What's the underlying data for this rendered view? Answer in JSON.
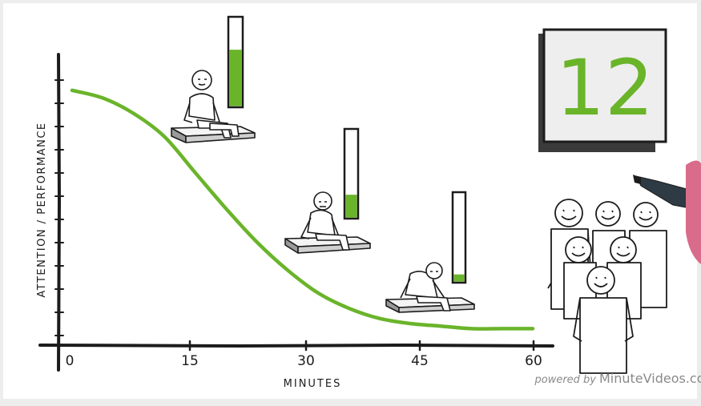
{
  "chart_data": {
    "type": "line",
    "xlabel": "MINUTES",
    "ylabel": "ATTENTION / PERFORMANCE",
    "x_ticks": [
      "0",
      "15",
      "30",
      "45",
      "60"
    ],
    "xlim": [
      0,
      60
    ],
    "ylim": [
      0,
      100
    ],
    "grid": false,
    "series": [
      {
        "x": [
          0,
          4,
          8,
          12,
          16,
          20,
          24,
          28,
          32,
          36,
          40,
          44,
          48,
          52,
          56,
          60
        ],
        "y": [
          96,
          93,
          87,
          78,
          64,
          50,
          37,
          26,
          17,
          11,
          7,
          5,
          4,
          3,
          3,
          3
        ],
        "color": "#6ab42a"
      }
    ],
    "gauges": [
      {
        "label": "attention-gauge-high",
        "level": 0.64
      },
      {
        "label": "attention-gauge-mid",
        "level": 0.26
      },
      {
        "label": "attention-gauge-low",
        "level": 0.08
      }
    ]
  },
  "board": {
    "number": "12"
  },
  "watermark": {
    "powered_by": "powered by",
    "brand": "MinuteVideos.com"
  },
  "colors": {
    "accent_green": "#6ab42a",
    "ink": "#1c1c1c",
    "paper": "#ffffff"
  },
  "icons": [
    "student-figure-icon",
    "audience-group-icon",
    "marker-pen-icon"
  ]
}
